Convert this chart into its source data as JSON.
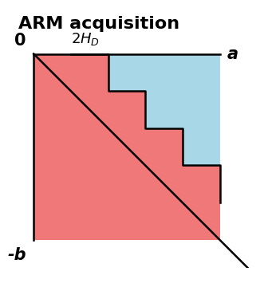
{
  "title": "ARM acquisition",
  "title_fontsize": 16,
  "title_fontweight": "bold",
  "label_a": "a",
  "label_neg_b": "-b",
  "label_0": "0",
  "label_2HD": "2H_D",
  "pink_color": "#F07878",
  "blue_color": "#A8D8E8",
  "line_color": "black",
  "line_width": 1.8,
  "fig_width": 3.31,
  "fig_height": 3.8,
  "dpi": 100,
  "sq": 1.0,
  "hd": 0.2,
  "n_steps": 4
}
